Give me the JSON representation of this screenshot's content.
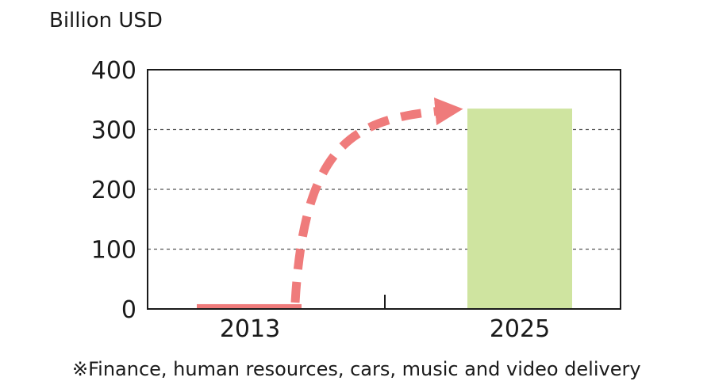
{
  "chart_data": {
    "type": "bar",
    "ylabel": "Billion USD",
    "categories": [
      "2013",
      "2025"
    ],
    "values": [
      8,
      335
    ],
    "ylim": [
      0,
      400
    ],
    "yticks": [
      "0",
      "100",
      "200",
      "300",
      "400"
    ],
    "grid": true,
    "footnote": "※Finance, human resources, cars, music and video delivery",
    "annotation": "growth-arrow",
    "colors": {
      "bar_2013": "#ef7b7b",
      "bar_2025": "#cfe4a0",
      "arrow": "#ef7b7b",
      "grid": "#555555",
      "frame": "#1a1a1a"
    }
  }
}
